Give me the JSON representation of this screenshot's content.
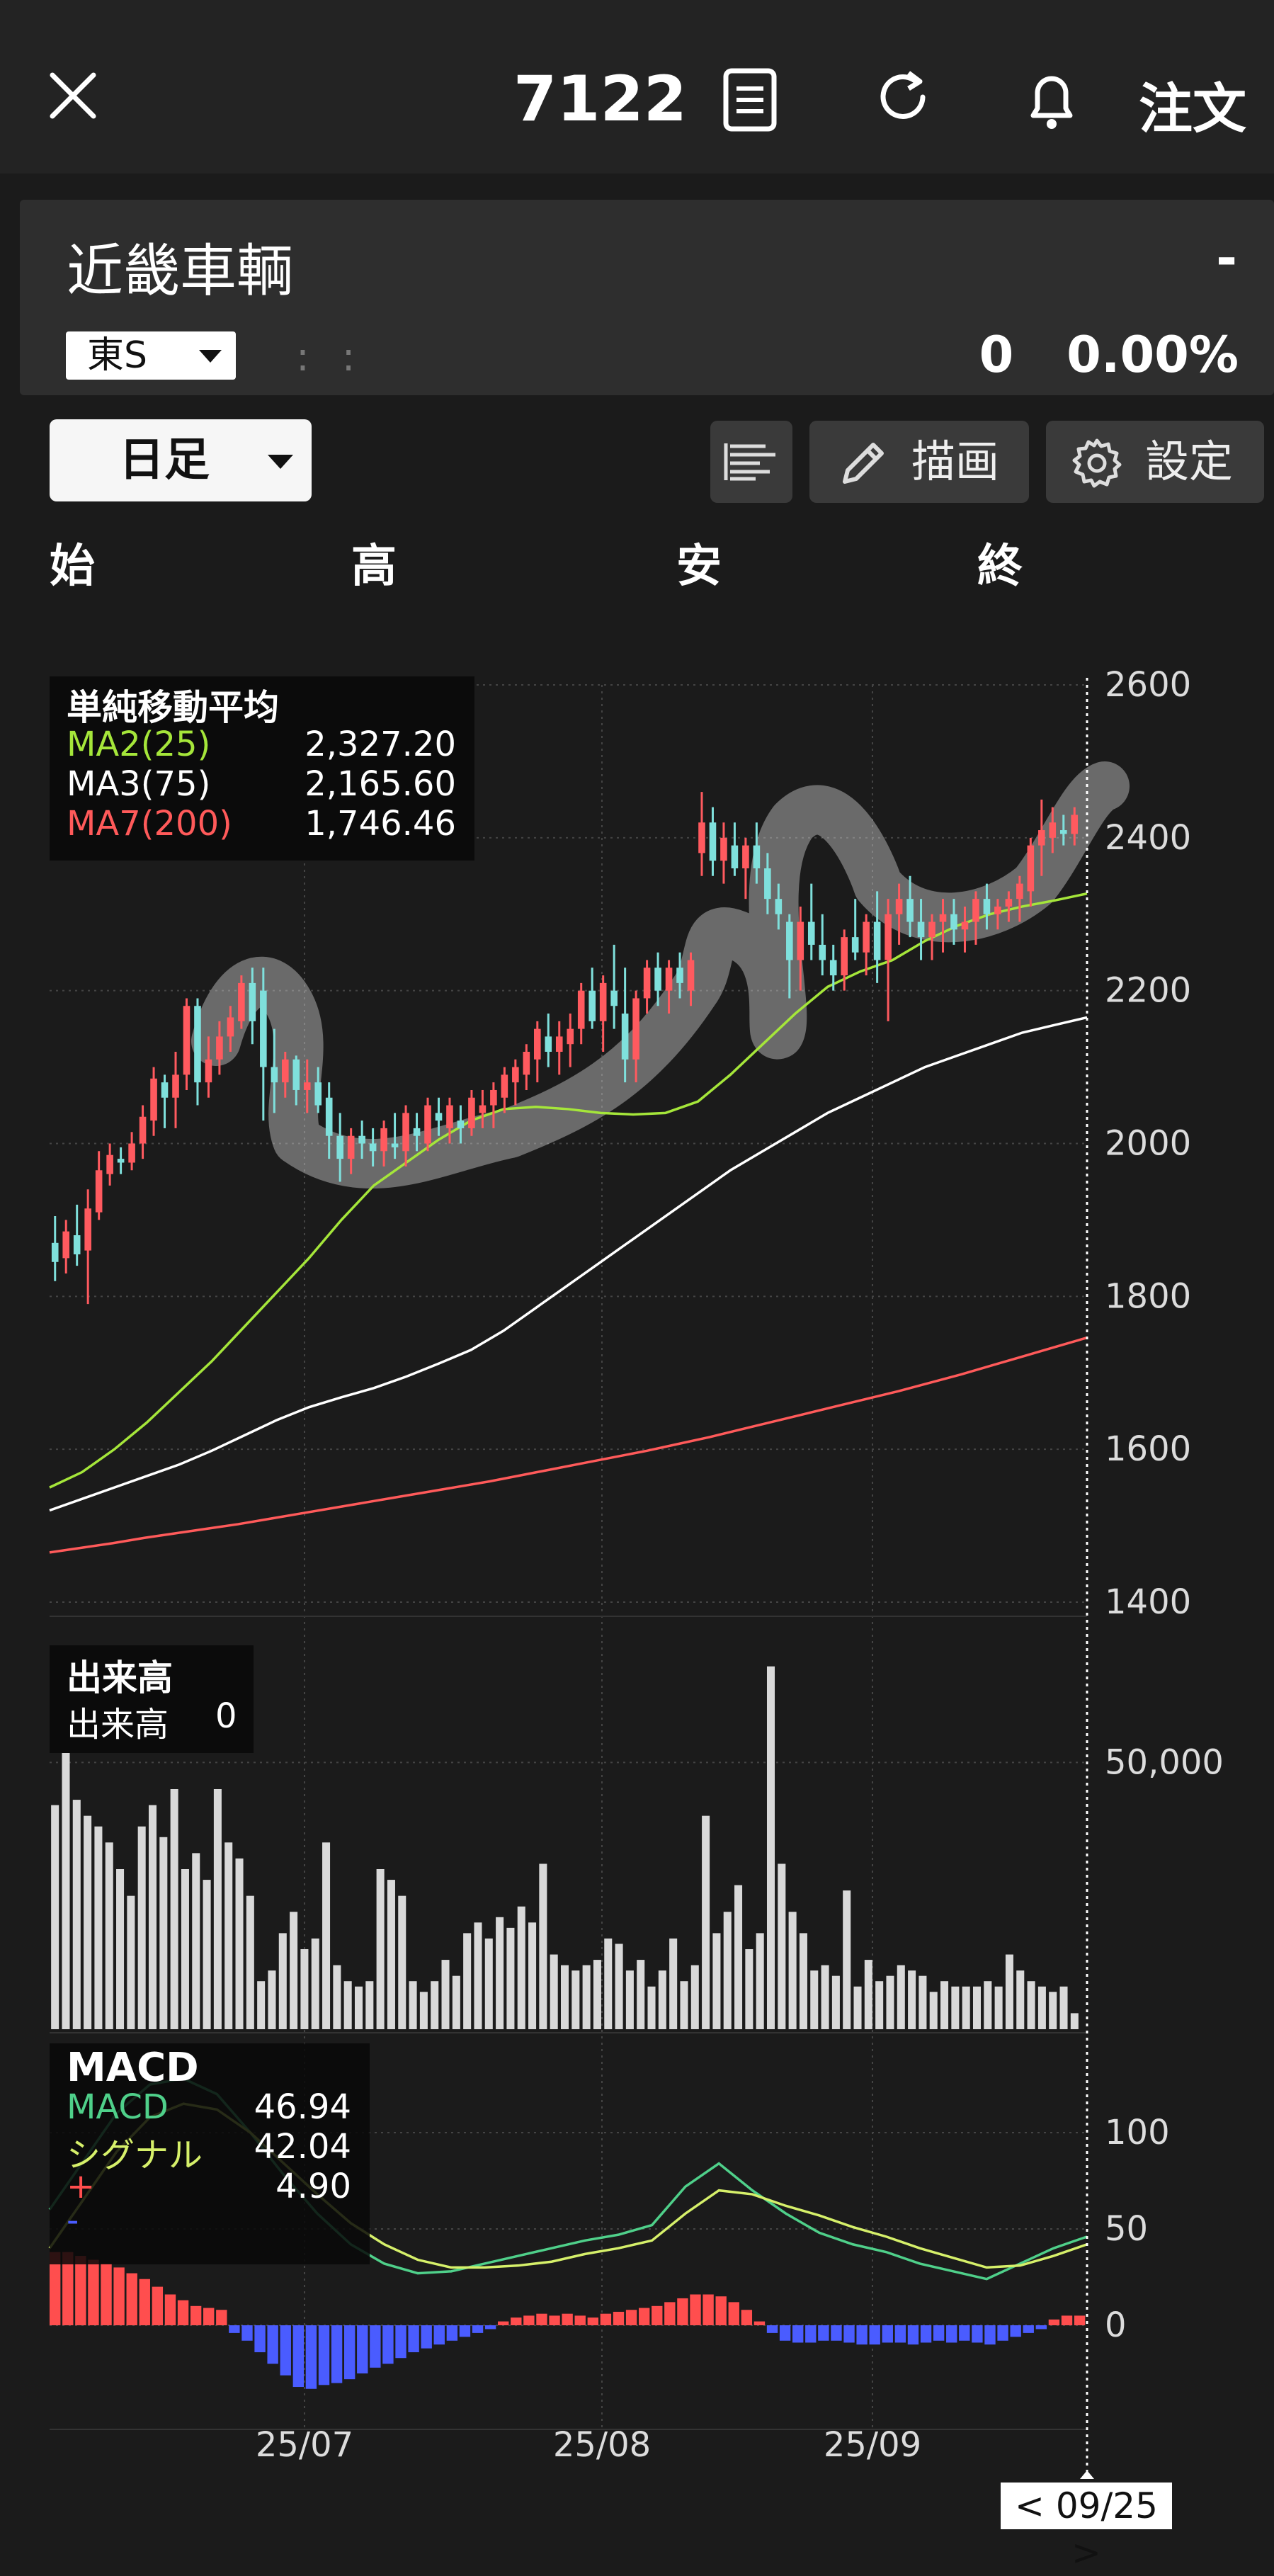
{
  "header": {
    "code": "7122",
    "order_label": "注文"
  },
  "stock": {
    "name": "近畿車輌",
    "price": "-",
    "market": "東S",
    "change": "0",
    "change_pct": "0.00%"
  },
  "toolbar": {
    "timeframe": "日足",
    "draw_label": "描画",
    "settings_label": "設定"
  },
  "ohlc_labels": {
    "open": "始",
    "high": "高",
    "low": "安",
    "close": "終"
  },
  "ma_legend": {
    "title": "単純移動平均",
    "items": [
      {
        "name": "MA2(25)",
        "value": "2,327.20",
        "color": "#a5e63a"
      },
      {
        "name": "MA3(75)",
        "value": "2,165.60",
        "color": "#ffffff"
      },
      {
        "name": "MA7(200)",
        "value": "1,746.46",
        "color": "#ff5a5a"
      }
    ]
  },
  "volume_legend": {
    "title": "出来高",
    "label": "出来高",
    "value": "0"
  },
  "macd_legend": {
    "title": "MACD",
    "items": [
      {
        "name": "MACD",
        "value": "46.94",
        "color": "#4fd08a"
      },
      {
        "name": "シグナル",
        "value": "42.04",
        "color": "#d6f06a"
      },
      {
        "name": "+",
        "value": "4.90",
        "color": "#ff4e4e"
      },
      {
        "name": "-",
        "value": "",
        "color": "#4a5cff"
      }
    ]
  },
  "colors": {
    "up": "#ff5a5f",
    "down": "#7fe0dc",
    "hist_pos": "#ff4e4e",
    "hist_neg": "#4a5cff",
    "volume": "#d9d9d9"
  },
  "date_cursor": "< 09/25 >",
  "chart_data": [
    {
      "type": "candlestick",
      "panel": "price",
      "yticks": [
        2600,
        2400,
        2200,
        2000,
        1800,
        1600,
        1400
      ],
      "ylim": [
        1400,
        2600
      ],
      "xticks": [
        "25/07",
        "25/08",
        "25/09"
      ],
      "candles": [
        [
          1870,
          1905,
          1820,
          1845
        ],
        [
          1850,
          1900,
          1830,
          1885
        ],
        [
          1880,
          1920,
          1840,
          1855
        ],
        [
          1860,
          1940,
          1790,
          1915
        ],
        [
          1910,
          1990,
          1900,
          1965
        ],
        [
          1960,
          2000,
          1945,
          1985
        ],
        [
          1980,
          1995,
          1960,
          1975
        ],
        [
          1975,
          2015,
          1965,
          2000
        ],
        [
          2000,
          2050,
          1980,
          2035
        ],
        [
          2030,
          2100,
          2010,
          2085
        ],
        [
          2080,
          2090,
          2020,
          2060
        ],
        [
          2060,
          2120,
          2020,
          2090
        ],
        [
          2090,
          2190,
          2070,
          2180
        ],
        [
          2180,
          2190,
          2050,
          2080
        ],
        [
          2080,
          2140,
          2060,
          2110
        ],
        [
          2110,
          2160,
          2090,
          2140
        ],
        [
          2140,
          2180,
          2120,
          2165
        ],
        [
          2160,
          2220,
          2150,
          2210
        ],
        [
          2210,
          2230,
          2130,
          2160
        ],
        [
          2200,
          2230,
          2030,
          2100
        ],
        [
          2100,
          2150,
          2040,
          2080
        ],
        [
          2080,
          2120,
          2060,
          2110
        ],
        [
          2110,
          2115,
          2050,
          2070
        ],
        [
          2070,
          2110,
          2040,
          2080
        ],
        [
          2080,
          2100,
          2040,
          2050
        ],
        [
          2060,
          2080,
          1980,
          2010
        ],
        [
          2010,
          2040,
          1950,
          1980
        ],
        [
          1980,
          2020,
          1960,
          2010
        ],
        [
          2010,
          2030,
          1980,
          2000
        ],
        [
          2000,
          2020,
          1970,
          1990
        ],
        [
          1990,
          2030,
          1970,
          2020
        ],
        [
          2000,
          2040,
          1980,
          1995
        ],
        [
          1990,
          2050,
          1970,
          2040
        ],
        [
          2020,
          2040,
          1990,
          2010
        ],
        [
          2000,
          2060,
          1990,
          2050
        ],
        [
          2040,
          2060,
          2010,
          2030
        ],
        [
          2020,
          2060,
          2000,
          2050
        ],
        [
          2030,
          2050,
          2000,
          2020
        ],
        [
          2020,
          2070,
          2010,
          2060
        ],
        [
          2040,
          2070,
          2020,
          2050
        ],
        [
          2050,
          2080,
          2020,
          2070
        ],
        [
          2060,
          2100,
          2040,
          2090
        ],
        [
          2080,
          2110,
          2050,
          2100
        ],
        [
          2090,
          2130,
          2070,
          2120
        ],
        [
          2110,
          2160,
          2080,
          2150
        ],
        [
          2140,
          2170,
          2100,
          2120
        ],
        [
          2120,
          2160,
          2090,
          2140
        ],
        [
          2130,
          2170,
          2100,
          2150
        ],
        [
          2150,
          2210,
          2130,
          2200
        ],
        [
          2200,
          2230,
          2150,
          2160
        ],
        [
          2160,
          2220,
          2120,
          2210
        ],
        [
          2200,
          2260,
          2150,
          2180
        ],
        [
          2170,
          2230,
          2080,
          2110
        ],
        [
          2110,
          2200,
          2080,
          2190
        ],
        [
          2190,
          2240,
          2170,
          2230
        ],
        [
          2230,
          2250,
          2180,
          2200
        ],
        [
          2200,
          2240,
          2170,
          2230
        ],
        [
          2230,
          2250,
          2190,
          2210
        ],
        [
          2200,
          2250,
          2180,
          2240
        ],
        [
          2380,
          2460,
          2350,
          2420
        ],
        [
          2420,
          2440,
          2350,
          2370
        ],
        [
          2370,
          2420,
          2340,
          2400
        ],
        [
          2390,
          2420,
          2350,
          2360
        ],
        [
          2360,
          2400,
          2320,
          2390
        ],
        [
          2390,
          2420,
          2340,
          2360
        ],
        [
          2360,
          2380,
          2300,
          2320
        ],
        [
          2320,
          2340,
          2280,
          2300
        ],
        [
          2290,
          2300,
          2190,
          2240
        ],
        [
          2240,
          2310,
          2200,
          2290
        ],
        [
          2290,
          2340,
          2240,
          2260
        ],
        [
          2260,
          2300,
          2220,
          2240
        ],
        [
          2240,
          2260,
          2200,
          2220
        ],
        [
          2220,
          2280,
          2200,
          2270
        ],
        [
          2270,
          2320,
          2240,
          2250
        ],
        [
          2250,
          2300,
          2220,
          2290
        ],
        [
          2290,
          2330,
          2210,
          2240
        ],
        [
          2240,
          2320,
          2160,
          2300
        ],
        [
          2300,
          2340,
          2260,
          2320
        ],
        [
          2320,
          2350,
          2270,
          2290
        ],
        [
          2290,
          2320,
          2240,
          2270
        ],
        [
          2270,
          2300,
          2240,
          2290
        ],
        [
          2290,
          2320,
          2250,
          2300
        ],
        [
          2300,
          2320,
          2260,
          2280
        ],
        [
          2280,
          2310,
          2250,
          2290
        ],
        [
          2290,
          2330,
          2260,
          2320
        ],
        [
          2320,
          2340,
          2280,
          2300
        ],
        [
          2300,
          2320,
          2280,
          2310
        ],
        [
          2310,
          2330,
          2290,
          2320
        ],
        [
          2320,
          2350,
          2290,
          2340
        ],
        [
          2330,
          2400,
          2310,
          2390
        ],
        [
          2390,
          2450,
          2350,
          2410
        ],
        [
          2400,
          2440,
          2380,
          2420
        ],
        [
          2410,
          2430,
          2390,
          2405
        ],
        [
          2405,
          2440,
          2390,
          2430
        ]
      ],
      "series": [
        {
          "name": "MA2(25)",
          "values": [
            1550,
            1570,
            1600,
            1635,
            1675,
            1715,
            1760,
            1805,
            1850,
            1900,
            1945,
            1975,
            2005,
            2030,
            2045,
            2048,
            2045,
            2040,
            2038,
            2040,
            2055,
            2090,
            2130,
            2170,
            2205,
            2225,
            2240,
            2265,
            2285,
            2300,
            2310,
            2318,
            2327
          ]
        },
        {
          "name": "MA3(75)",
          "values": [
            1520,
            1535,
            1550,
            1565,
            1580,
            1598,
            1618,
            1638,
            1655,
            1668,
            1680,
            1695,
            1712,
            1730,
            1755,
            1785,
            1815,
            1845,
            1875,
            1905,
            1935,
            1965,
            1990,
            2015,
            2040,
            2060,
            2080,
            2100,
            2115,
            2130,
            2145,
            2155,
            2165
          ]
        },
        {
          "name": "MA7(200)",
          "values": [
            1465,
            1471,
            1477,
            1484,
            1490,
            1496,
            1502,
            1509,
            1516,
            1523,
            1530,
            1537,
            1544,
            1551,
            1558,
            1566,
            1574,
            1582,
            1590,
            1598,
            1607,
            1616,
            1626,
            1636,
            1646,
            1656,
            1666,
            1676,
            1687,
            1698,
            1710,
            1722,
            1734,
            1746
          ]
        }
      ]
    },
    {
      "type": "bar",
      "panel": "volume",
      "yticks": [
        50000
      ],
      "values": [
        42000,
        60000,
        43000,
        40000,
        38000,
        35000,
        30000,
        25000,
        38000,
        42000,
        36000,
        45000,
        30000,
        33000,
        28000,
        45000,
        35000,
        32000,
        25000,
        9000,
        11000,
        18000,
        22000,
        15000,
        17000,
        35000,
        12000,
        9000,
        8000,
        9000,
        30000,
        28000,
        25000,
        9000,
        7000,
        9000,
        13000,
        10000,
        18000,
        20000,
        17000,
        21000,
        19000,
        23000,
        20000,
        31000,
        14000,
        12000,
        11000,
        12000,
        13000,
        17000,
        16000,
        11000,
        13000,
        8000,
        11000,
        17000,
        9000,
        12000,
        40000,
        18000,
        22000,
        27000,
        15000,
        18000,
        68000,
        31000,
        22000,
        18000,
        11000,
        12000,
        10000,
        26000,
        8000,
        13000,
        9000,
        10000,
        12000,
        11000,
        10000,
        7000,
        9000,
        8000,
        8000,
        8000,
        9000,
        8000,
        14000,
        11000,
        9000,
        8000,
        7000,
        8000,
        3000
      ]
    },
    {
      "type": "line+bar",
      "panel": "macd",
      "yticks": [
        100,
        50,
        0
      ],
      "series": [
        {
          "name": "MACD",
          "values": [
            60,
            85,
            110,
            125,
            128,
            120,
            100,
            78,
            58,
            42,
            32,
            27,
            28,
            32,
            36,
            40,
            44,
            47,
            52,
            72,
            84,
            70,
            58,
            48,
            42,
            38,
            32,
            28,
            24,
            32,
            40,
            46
          ]
        },
        {
          "name": "シグナル",
          "values": [
            40,
            65,
            90,
            108,
            115,
            112,
            100,
            84,
            68,
            53,
            42,
            34,
            30,
            30,
            31,
            33,
            37,
            40,
            44,
            58,
            70,
            68,
            62,
            57,
            51,
            46,
            40,
            35,
            30,
            31,
            36,
            42
          ]
        }
      ],
      "histogram": [
        38,
        38,
        36,
        34,
        32,
        30,
        27,
        24,
        20,
        16,
        13,
        10,
        9,
        8,
        -4,
        -8,
        -14,
        -20,
        -26,
        -32,
        -33,
        -31,
        -30,
        -28,
        -25,
        -22,
        -20,
        -17,
        -14,
        -12,
        -10,
        -8,
        -6,
        -4,
        -2,
        2,
        4,
        5,
        6,
        5,
        6,
        5,
        4,
        6,
        7,
        8,
        9,
        10,
        12,
        14,
        16,
        16,
        15,
        12,
        8,
        2,
        -4,
        -8,
        -9,
        -9,
        -8,
        -8,
        -9,
        -10,
        -10,
        -9,
        -9,
        -10,
        -9,
        -8,
        -9,
        -8,
        -9,
        -10,
        -8,
        -6,
        -4,
        -2,
        3,
        5,
        5
      ]
    }
  ]
}
